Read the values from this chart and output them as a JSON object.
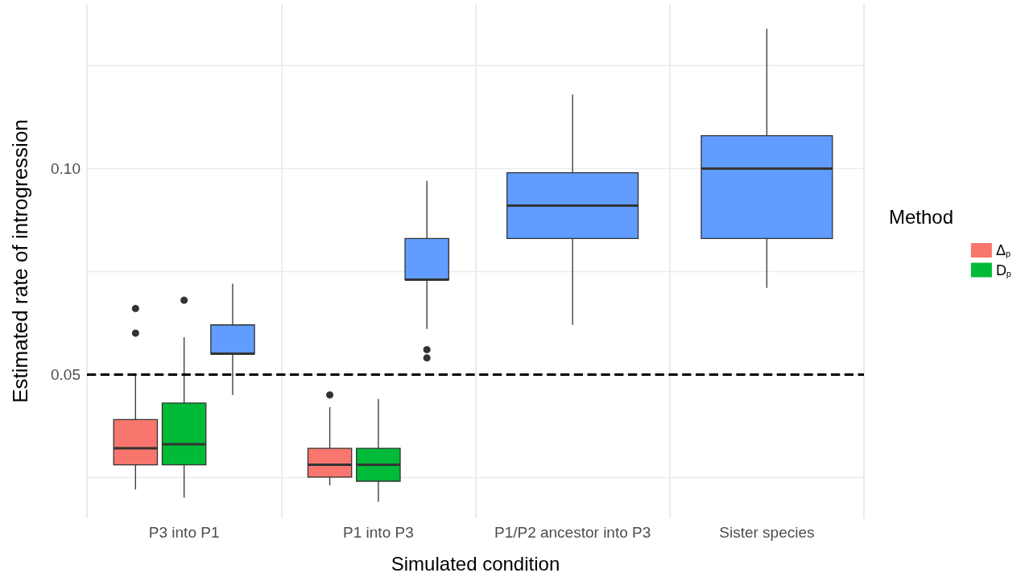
{
  "chart_data": {
    "type": "box",
    "xlabel": "Simulated condition",
    "ylabel": "Estimated rate of introgression",
    "legend_title": "Method",
    "legend": "right",
    "grid": true,
    "categories": [
      "P3 into P1",
      "P1 into P3",
      "P1/P2 ancestor into P3",
      "Sister species"
    ],
    "ylim": [
      0.015,
      0.14
    ],
    "yticks": [
      {
        "value": 0.025,
        "label": null
      },
      0.05,
      {
        "value": 0.075,
        "label": null
      },
      {
        "value": 0.1,
        "label": "0.10"
      },
      {
        "value": 0.125,
        "label": null
      }
    ],
    "ref_lines": [
      {
        "axis": "y",
        "value": 0.05,
        "color": "#000000",
        "line_style": "dashed"
      }
    ],
    "series": [
      {
        "name": "Δ$_{p}$",
        "color": "#f8766d",
        "boxes": [
          {
            "low": 0.022,
            "q1": 0.028,
            "median": 0.032,
            "q3": 0.039,
            "high": 0.05,
            "outliers": [
              0.066,
              0.06
            ]
          },
          {
            "low": 0.023,
            "q1": 0.025,
            "median": 0.028,
            "q3": 0.032,
            "high": 0.042,
            "outliers": [
              0.045
            ]
          },
          null,
          null
        ]
      },
      {
        "name": "D$_{p}$",
        "color": "#00ba38",
        "boxes": [
          {
            "low": 0.02,
            "q1": 0.028,
            "median": 0.033,
            "q3": 0.043,
            "high": 0.059,
            "outliers": [
              0.068
            ]
          },
          {
            "low": 0.019,
            "q1": 0.024,
            "median": 0.028,
            "q3": 0.032,
            "high": 0.044
          },
          null,
          null
        ]
      },
      {
        "color": "#619cff",
        "boxes": [
          {
            "low": 0.045,
            "q1": 0.055,
            "median": 0.055,
            "q3": 0.062,
            "high": 0.072
          },
          {
            "low": 0.061,
            "q1": 0.073,
            "median": 0.073,
            "q3": 0.083,
            "high": 0.097,
            "outliers": [
              0.056,
              0.054
            ]
          },
          {
            "low": 0.062,
            "q1": 0.083,
            "median": 0.091,
            "q3": 0.099,
            "high": 0.118
          },
          {
            "low": 0.071,
            "q1": 0.083,
            "median": 0.1,
            "q3": 0.108,
            "high": 0.134
          }
        ]
      }
    ]
  }
}
